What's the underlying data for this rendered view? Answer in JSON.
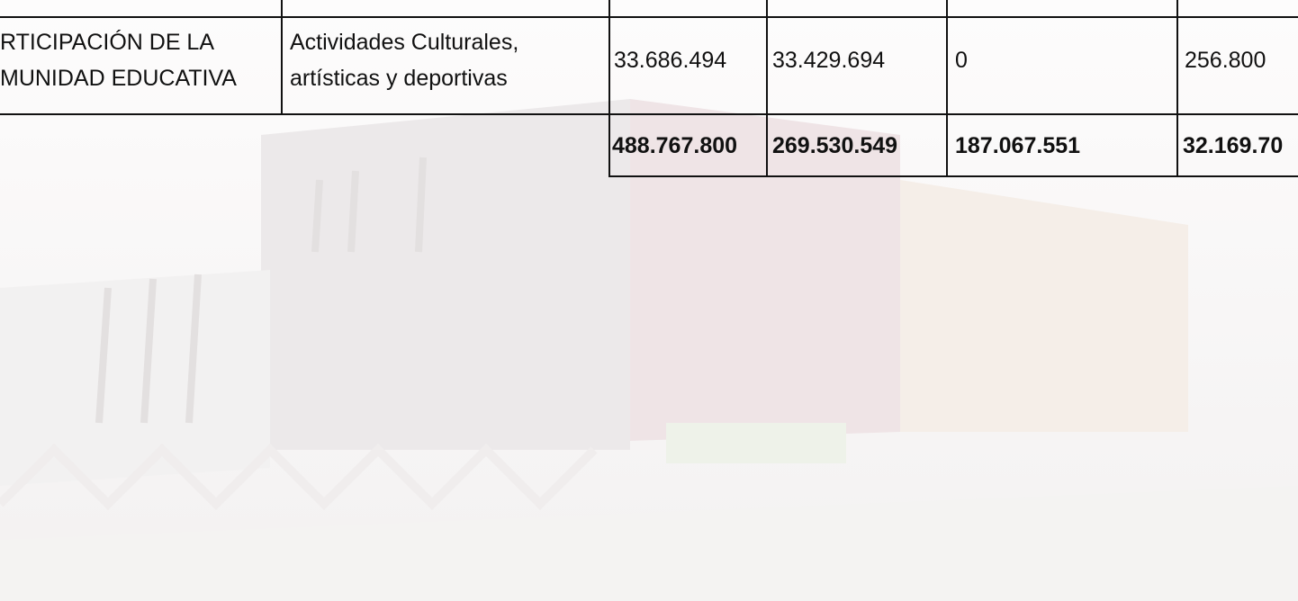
{
  "table": {
    "rows": [
      {
        "area": [
          "RTICIPACIÓN DE LA",
          "MUNIDAD EDUCATIVA"
        ],
        "activity": [
          "Actividades Culturales,",
          "artísticas y deportivas"
        ],
        "amounts": [
          "33.686.494",
          "33.429.694",
          "0",
          "256.800"
        ]
      }
    ],
    "totals": [
      "488.767.800",
      "269.530.549",
      "187.067.551",
      "32.169.70"
    ]
  }
}
